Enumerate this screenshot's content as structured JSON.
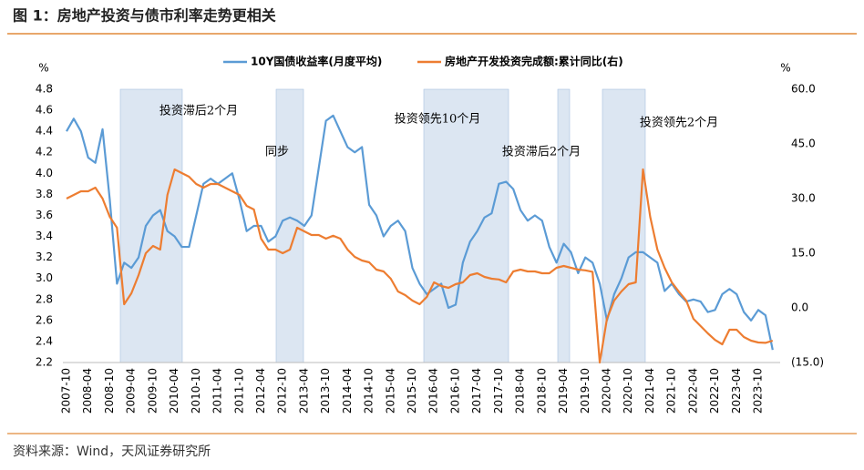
{
  "chart_data": {
    "type": "line",
    "title": "图 1：房地产投资与债市利率走势更相关",
    "source": "资料来源：Wind，天风证券研究所",
    "y_label": "%",
    "y2_label": "%",
    "annotations": [
      "投资滞后2个月",
      "同步",
      "投资领先10个月",
      "投资滞后2个月",
      "投资领先2个月"
    ],
    "categories": [
      "2007-10",
      null,
      null,
      "2008-04",
      null,
      null,
      "2008-10",
      null,
      null,
      "2009-04",
      null,
      null,
      "2009-10",
      null,
      null,
      "2010-04",
      null,
      null,
      "2010-10",
      null,
      null,
      "2011-04",
      null,
      null,
      "2011-10",
      null,
      null,
      "2012-04",
      null,
      null,
      "2012-10",
      null,
      null,
      "2013-04",
      null,
      null,
      "2013-10",
      null,
      null,
      "2014-04",
      null,
      null,
      "2014-10",
      null,
      null,
      "2015-04",
      null,
      null,
      "2015-10",
      null,
      null,
      "2016-04",
      null,
      null,
      "2016-10",
      null,
      null,
      "2017-04",
      null,
      null,
      "2017-10",
      null,
      null,
      "2018-04",
      null,
      null,
      "2018-10",
      null,
      null,
      "2019-04",
      null,
      null,
      "2019-10",
      null,
      null,
      "2020-04",
      null,
      null,
      "2020-10",
      null,
      null,
      "2021-04",
      null,
      null,
      "2021-10",
      null,
      null,
      "2022-04",
      null,
      null,
      "2022-10",
      null,
      null,
      "2023-04",
      null,
      null,
      "2023-10",
      null,
      null
    ],
    "series": [
      {
        "name": "10Y国债收益率(月度平均)",
        "color": "#5b9bd5",
        "axis": "y",
        "values": [
          4.4,
          4.52,
          4.4,
          4.15,
          4.1,
          4.42,
          3.75,
          2.95,
          3.15,
          3.1,
          3.2,
          3.5,
          3.6,
          3.65,
          3.45,
          3.4,
          3.3,
          3.3,
          3.6,
          3.9,
          3.95,
          3.9,
          3.95,
          4.0,
          3.75,
          3.45,
          3.5,
          3.5,
          3.35,
          3.4,
          3.55,
          3.58,
          3.55,
          3.5,
          3.6,
          4.05,
          4.5,
          4.55,
          4.4,
          4.25,
          4.2,
          4.25,
          3.7,
          3.6,
          3.4,
          3.5,
          3.55,
          3.45,
          3.1,
          2.95,
          2.85,
          2.9,
          2.95,
          2.72,
          2.75,
          3.15,
          3.35,
          3.45,
          3.58,
          3.62,
          3.9,
          3.92,
          3.85,
          3.65,
          3.55,
          3.6,
          3.55,
          3.3,
          3.15,
          3.33,
          3.25,
          3.05,
          3.2,
          3.15,
          2.95,
          2.6,
          2.85,
          3.0,
          3.2,
          3.25,
          3.25,
          3.2,
          3.15,
          2.88,
          2.95,
          2.85,
          2.78,
          2.8,
          2.78,
          2.68,
          2.7,
          2.85,
          2.9,
          2.85,
          2.68,
          2.6,
          2.7,
          2.65,
          2.32
        ]
      },
      {
        "name": "房地产开发投资完成额:累计同比(右)",
        "color": "#ed7d31",
        "axis": "y2",
        "values": [
          30,
          31,
          32,
          32,
          33,
          30,
          25,
          22,
          1,
          4,
          9,
          15,
          17,
          16,
          31,
          38,
          37,
          36,
          34,
          33,
          34,
          34,
          33,
          32,
          31,
          28,
          27,
          19,
          16,
          16,
          15,
          16,
          22,
          21,
          20,
          20,
          19,
          19.8,
          19,
          16,
          14,
          13,
          12.5,
          10.5,
          10,
          8,
          4.5,
          3.5,
          2,
          1,
          3,
          7,
          6,
          5.5,
          6.5,
          7,
          9,
          9.5,
          8.5,
          8,
          7.8,
          7,
          10,
          10.5,
          10,
          10,
          9.5,
          9.5,
          11,
          11.5,
          11,
          10.5,
          10.3,
          9.9,
          -15,
          -3,
          2,
          4.5,
          6.5,
          7,
          38,
          25,
          16,
          11,
          7,
          4.4,
          2,
          -3,
          -5,
          -7,
          -8.8,
          -10,
          -6,
          -6,
          -8,
          -9,
          -9.5,
          -9.6,
          -9
        ]
      }
    ],
    "ylim": [
      2.2,
      4.8
    ],
    "yticks": [
      2.2,
      2.4,
      2.6,
      2.8,
      {
        "value": 3,
        "label": "3.0"
      },
      3.2,
      3.4,
      3.6,
      3.8,
      {
        "value": 4,
        "label": "4.0"
      },
      4.2,
      4.4,
      4.6,
      4.8
    ],
    "y2lim": [
      -15,
      60
    ],
    "y2ticks": [
      {
        "value": -15,
        "label": "(15.0)"
      },
      {
        "value": 0,
        "label": "0.0"
      },
      {
        "value": 15,
        "label": "15.0"
      },
      {
        "value": 30,
        "label": "30.0"
      },
      {
        "value": 45,
        "label": "45.0"
      },
      {
        "value": 60,
        "label": "60.0"
      }
    ],
    "legend": "top",
    "grid": false
  }
}
